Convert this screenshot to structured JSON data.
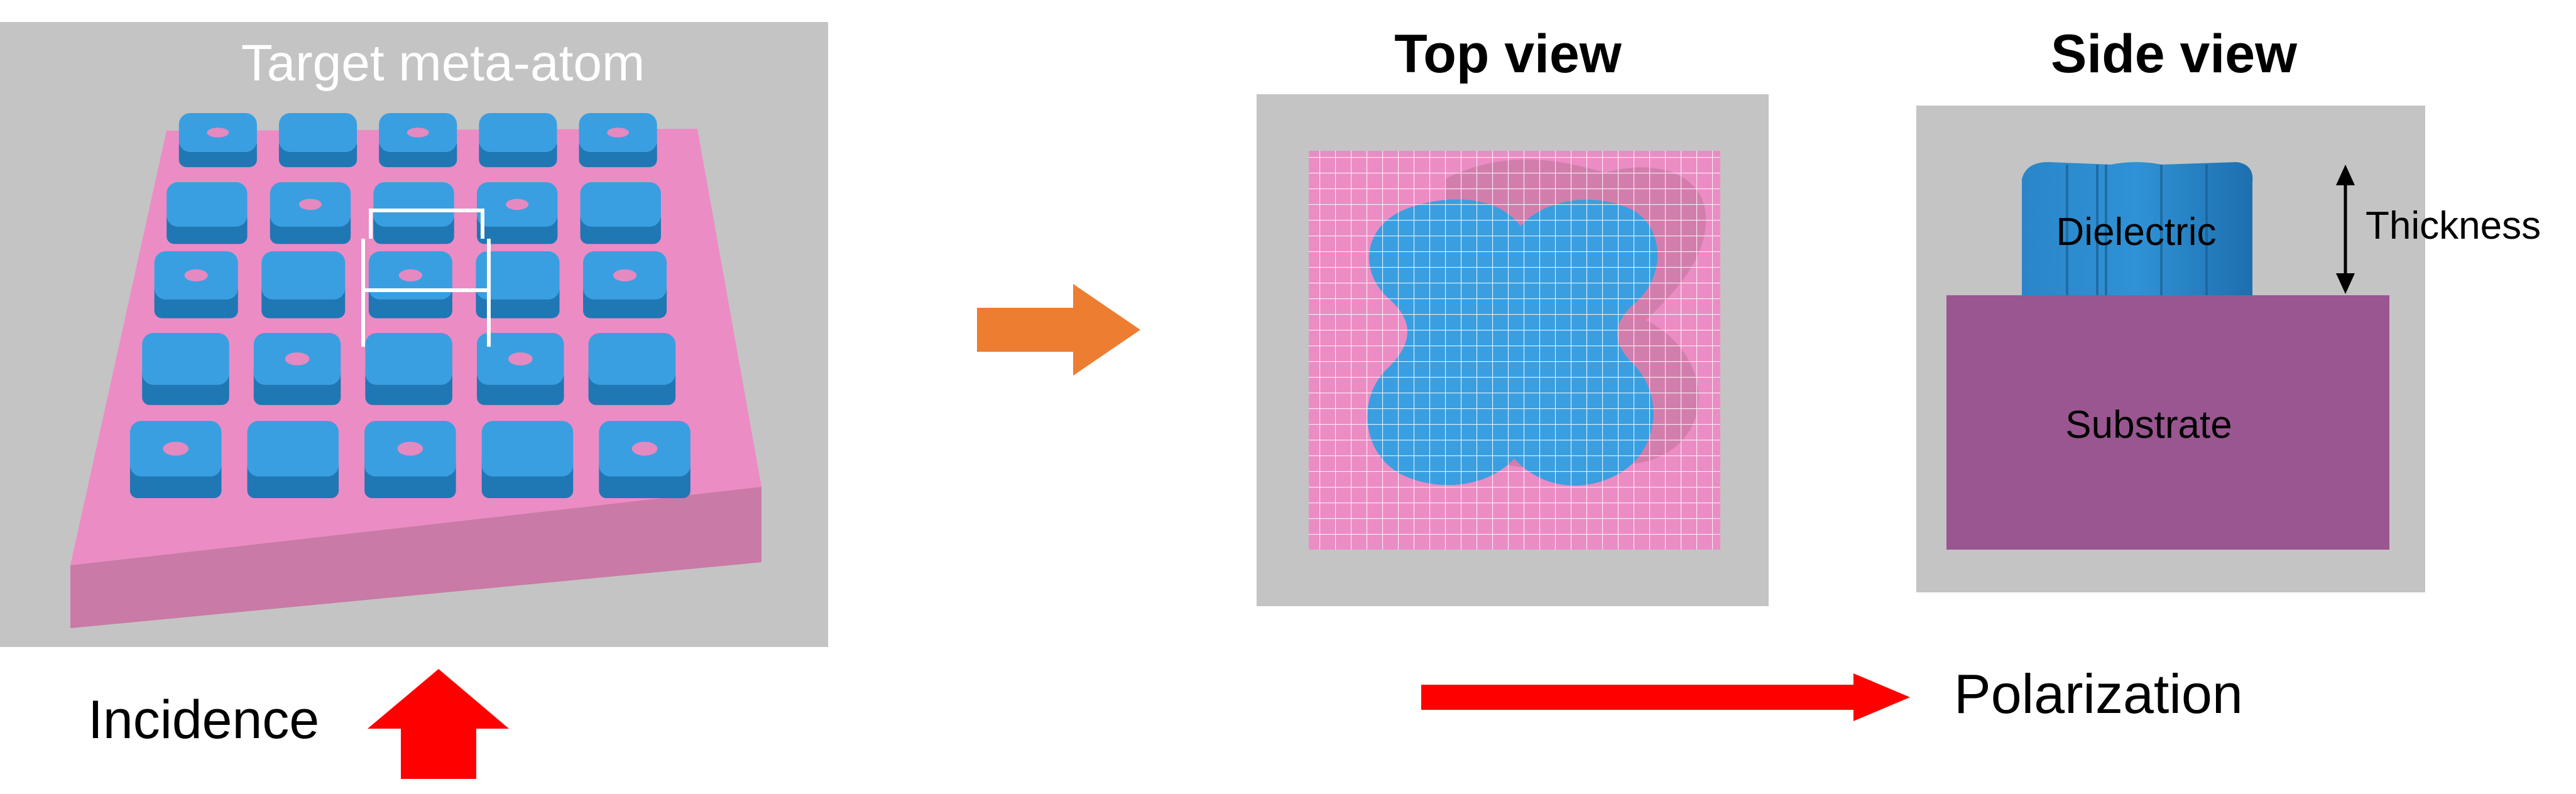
{
  "panel_left": {
    "title": "Target meta-atom",
    "incidence_label": "Incidence"
  },
  "panel_top_view": {
    "title": "Top view"
  },
  "panel_side_view": {
    "title": "Side view",
    "dielectric_label": "Dielectric",
    "substrate_label": "Substrate",
    "thickness_label": "Thickness"
  },
  "polarization_label": "Polarization",
  "colors": {
    "background_gray": "#c4c4c4",
    "substrate_pink": "#ec8cc4",
    "substrate_side": "#c97aa6",
    "dielectric_blue": "#3a9fe0",
    "dielectric_dark": "#1f77b4",
    "side_substrate_purple": "#9a5690",
    "arrow_orange": "#ed7d31",
    "arrow_red": "#ff0000"
  }
}
